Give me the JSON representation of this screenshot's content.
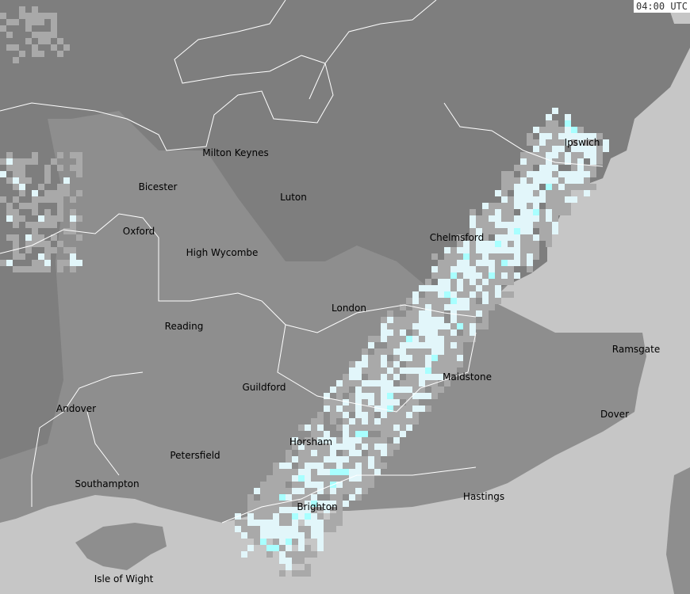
{
  "timestamp": "04:00 UTC",
  "colors": {
    "sea": "#c6c6c6",
    "land_north": "#7e7e7e",
    "land_south": "#8e8e8e",
    "rain_light": "#a9a9a9",
    "rain_pale": "#e2f6fa",
    "rain_cyan": "#a8ffff",
    "boundary": "#ffffff"
  },
  "cities": [
    "Milton Keynes",
    "Ipswich",
    "Bicester",
    "Luton",
    "Oxford",
    "Chelmsford",
    "High Wycombe",
    "London",
    "Reading",
    "Ramsgate",
    "Maidstone",
    "Guildford",
    "Andover",
    "Dover",
    "Horsham",
    "Petersfield",
    "Southampton",
    "Hastings",
    "Brighton",
    "Isle of Wight"
  ]
}
